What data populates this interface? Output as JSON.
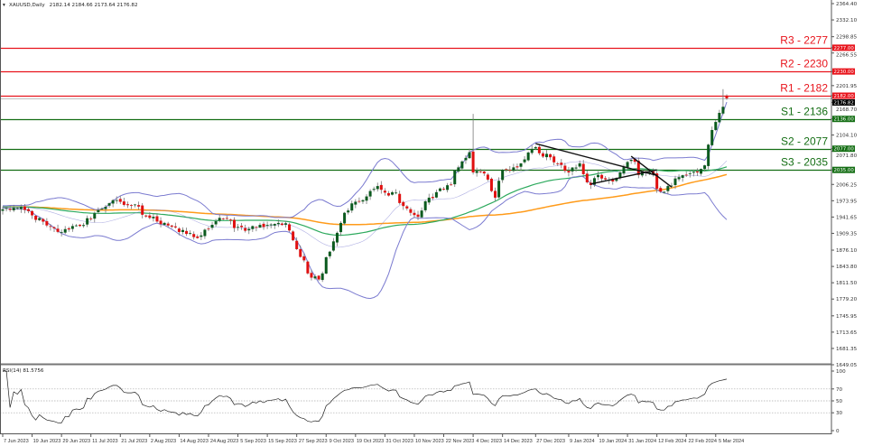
{
  "header": {
    "symbol_label": "XAUUSD,Daily",
    "ohlc": "2182.14 2184.66 2173.64 2176.82"
  },
  "chart_data": [
    {
      "type": "candlestick",
      "title": "XAUUSD,Daily",
      "price_axis_ticks": [
        "2364.40",
        "2332.10",
        "2298.85",
        "2266.55",
        "2201.95",
        "2168.70",
        "2104.10",
        "2071.80",
        "2006.25",
        "1973.95",
        "1941.65",
        "1909.35",
        "1876.10",
        "1843.80",
        "1811.50",
        "1779.20",
        "1745.95",
        "1713.65",
        "1681.35",
        "1649.05"
      ],
      "ylim": [
        1649.05,
        2364.4
      ],
      "date_ticks": [
        {
          "date": "2023-06-07",
          "label": "7 Jun 2023"
        },
        {
          "date": "2023-06-19",
          "label": "19 Jun 2023"
        },
        {
          "date": "2023-06-29",
          "label": "29 Jun 2023"
        },
        {
          "date": "2023-07-11",
          "label": "11 Jul 2023"
        },
        {
          "date": "2023-07-21",
          "label": "21 Jul 2023"
        },
        {
          "date": "2023-08-02",
          "label": "2 Aug 2023"
        },
        {
          "date": "2023-08-14",
          "label": "14 Aug 2023"
        },
        {
          "date": "2023-08-24",
          "label": "24 Aug 2023"
        },
        {
          "date": "2023-09-05",
          "label": "5 Sep 2023"
        },
        {
          "date": "2023-09-15",
          "label": "15 Sep 2023"
        },
        {
          "date": "2023-09-27",
          "label": "27 Sep 2023"
        },
        {
          "date": "2023-10-09",
          "label": "9 Oct 2023"
        },
        {
          "date": "2023-10-19",
          "label": "19 Oct 2023"
        },
        {
          "date": "2023-10-31",
          "label": "31 Oct 2023"
        },
        {
          "date": "2023-11-10",
          "label": "10 Nov 2023"
        },
        {
          "date": "2023-11-22",
          "label": "22 Nov 2023"
        },
        {
          "date": "2023-12-04",
          "label": "4 Dec 2023"
        },
        {
          "date": "2023-12-14",
          "label": "14 Dec 2023"
        },
        {
          "date": "2023-12-27",
          "label": "27 Dec 2023"
        },
        {
          "date": "2024-01-09",
          "label": "9 Jan 2024"
        },
        {
          "date": "2024-01-19",
          "label": "19 Jan 2024"
        },
        {
          "date": "2024-01-31",
          "label": "31 Jan 2024"
        },
        {
          "date": "2024-02-12",
          "label": "12 Feb 2024"
        },
        {
          "date": "2024-02-22",
          "label": "22 Feb 2024"
        },
        {
          "date": "2024-03-05",
          "label": "5 Mar 2024"
        }
      ],
      "first_date": "2023-06-07",
      "last_date": "2024-03-08",
      "approx_closes": [
        [
          "2023-06-07",
          1957
        ],
        [
          "2023-06-12",
          1960
        ],
        [
          "2023-06-19",
          1945
        ],
        [
          "2023-06-23",
          1925
        ],
        [
          "2023-06-29",
          1912
        ],
        [
          "2023-07-05",
          1925
        ],
        [
          "2023-07-11",
          1938
        ],
        [
          "2023-07-14",
          1958
        ],
        [
          "2023-07-20",
          1975
        ],
        [
          "2023-07-26",
          1965
        ],
        [
          "2023-08-02",
          1940
        ],
        [
          "2023-08-08",
          1930
        ],
        [
          "2023-08-14",
          1912
        ],
        [
          "2023-08-21",
          1900
        ],
        [
          "2023-08-24",
          1918
        ],
        [
          "2023-08-29",
          1940
        ],
        [
          "2023-09-05",
          1922
        ],
        [
          "2023-09-08",
          1918
        ],
        [
          "2023-09-15",
          1926
        ],
        [
          "2023-09-20",
          1930
        ],
        [
          "2023-09-25",
          1915
        ],
        [
          "2023-09-27",
          1878
        ],
        [
          "2023-10-02",
          1830
        ],
        [
          "2023-10-05",
          1818
        ],
        [
          "2023-10-06",
          1830
        ],
        [
          "2023-10-09",
          1862
        ],
        [
          "2023-10-13",
          1930
        ],
        [
          "2023-10-19",
          1972
        ],
        [
          "2023-10-23",
          1975
        ],
        [
          "2023-10-27",
          2003
        ],
        [
          "2023-10-31",
          1990
        ],
        [
          "2023-11-03",
          1990
        ],
        [
          "2023-11-09",
          1950
        ],
        [
          "2023-11-13",
          1942
        ],
        [
          "2023-11-16",
          1980
        ],
        [
          "2023-11-22",
          1996
        ],
        [
          "2023-11-28",
          2040
        ],
        [
          "2023-12-01",
          2070
        ],
        [
          "2023-12-04",
          2030
        ],
        [
          "2023-12-07",
          2028
        ],
        [
          "2023-12-12",
          1980
        ],
        [
          "2023-12-14",
          2035
        ],
        [
          "2023-12-20",
          2040
        ],
        [
          "2023-12-27",
          2080
        ],
        [
          "2023-12-28",
          2068
        ],
        [
          "2024-01-02",
          2060
        ],
        [
          "2024-01-05",
          2045
        ],
        [
          "2024-01-09",
          2030
        ],
        [
          "2024-01-12",
          2048
        ],
        [
          "2024-01-17",
          2005
        ],
        [
          "2024-01-19",
          2025
        ],
        [
          "2024-01-24",
          2015
        ],
        [
          "2024-01-29",
          2030
        ],
        [
          "2024-02-01",
          2055
        ],
        [
          "2024-02-05",
          2025
        ],
        [
          "2024-02-08",
          2030
        ],
        [
          "2024-02-13",
          1992
        ],
        [
          "2024-02-15",
          2003
        ],
        [
          "2024-02-19",
          2018
        ],
        [
          "2024-02-22",
          2025
        ],
        [
          "2024-02-27",
          2030
        ],
        [
          "2024-02-29",
          2044
        ],
        [
          "2024-03-01",
          2085
        ],
        [
          "2024-03-04",
          2114
        ],
        [
          "2024-03-05",
          2130
        ],
        [
          "2024-03-06",
          2148
        ],
        [
          "2024-03-07",
          2160
        ],
        [
          "2024-03-08",
          2176.82
        ]
      ],
      "high_overrides": [
        [
          "2023-12-04",
          2146
        ],
        [
          "2024-03-08",
          2184.66
        ],
        [
          "2024-03-07",
          2195
        ]
      ],
      "last_candle": {
        "open": 2182.14,
        "high": 2184.66,
        "low": 2173.64,
        "close": 2176.82
      },
      "indicators": {
        "bollinger": {
          "period": 20,
          "deviations": 2,
          "color": "#7b7bd0"
        },
        "ma_fast": {
          "period": 50,
          "color": "#2eaa5e"
        },
        "ma_slow": {
          "period": 100,
          "color": "#ff9b1a"
        }
      },
      "levels": [
        {
          "label": "R3 - 2277",
          "price": 2277.0,
          "tag": "2277.00",
          "color": "#e8141c"
        },
        {
          "label": "R2 - 2230",
          "price": 2230.0,
          "tag": "2230.00",
          "color": "#e8141c"
        },
        {
          "label": "R1 - 2182",
          "price": 2182.0,
          "tag": "2182.00",
          "color": "#e8141c"
        },
        {
          "label": "S1 - 2136",
          "price": 2136.0,
          "tag": "2136.00",
          "color": "#146e14"
        },
        {
          "label": "S2 - 2077",
          "price": 2077.0,
          "tag": "2077.00",
          "color": "#146e14"
        },
        {
          "label": "S3 - 2035",
          "price": 2035.0,
          "tag": "2035.00",
          "color": "#146e14"
        }
      ],
      "current_price": {
        "price": 2176.82,
        "tag": "2176.82"
      },
      "trendlines": [
        {
          "from": [
            "2023-12-27",
            2087
          ],
          "to": [
            "2024-02-12",
            2024
          ]
        },
        {
          "from": [
            "2024-01-17",
            2007
          ],
          "to": [
            "2024-02-12",
            2035
          ]
        },
        {
          "from": [
            "2024-02-01",
            2062
          ],
          "to": [
            "2024-02-16",
            2001
          ]
        }
      ],
      "colors": {
        "bull": "#0b5a1e",
        "bear": "#e01010",
        "wick": "#777777"
      }
    },
    {
      "type": "line",
      "title": "RSI(14) 81.5756",
      "label": "RSI(14)",
      "value": "81.5756",
      "ylim": [
        0,
        100
      ],
      "y_ticks": [
        "100",
        "70",
        "50",
        "30",
        "0"
      ],
      "levels": [
        70,
        50,
        30
      ]
    }
  ]
}
